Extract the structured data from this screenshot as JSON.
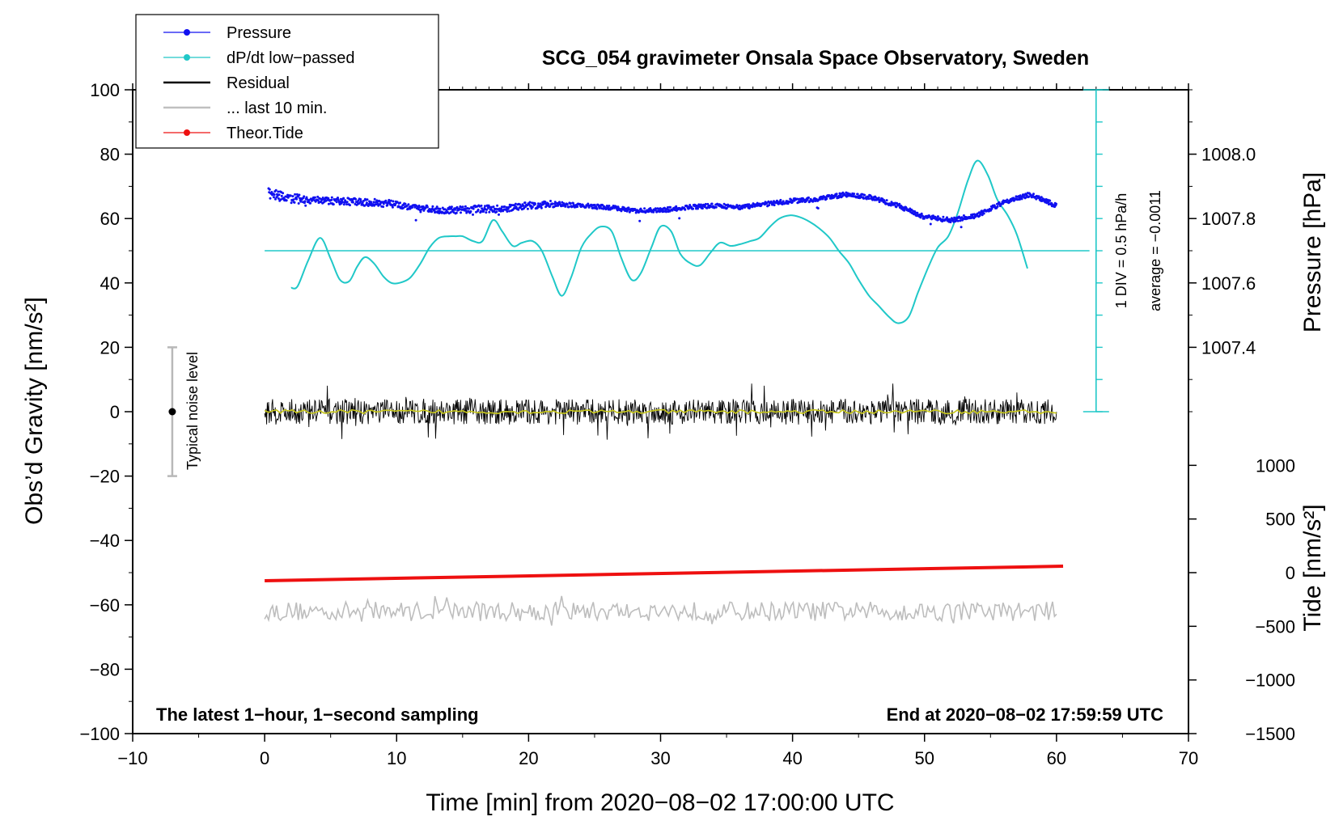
{
  "chart_data": {
    "type": "line",
    "title": "SCG_054 gravimeter Onsala Space Observatory, Sweden",
    "xlabel": "Time [min] from 2020−08−02 17:00:00 UTC",
    "ylabel_left": "Obs’d Gravity [nm/s²]",
    "ylabel_pressure": "Pressure [hPa]",
    "ylabel_tide": "Tide [nm/s²]",
    "xlim": [
      -10,
      70
    ],
    "ylim": [
      -100,
      100
    ],
    "x_ticks": [
      "−10",
      "0",
      "10",
      "20",
      "30",
      "40",
      "50",
      "60",
      "70"
    ],
    "y_ticks": [
      "−100",
      "−80",
      "−60",
      "−40",
      "−20",
      "0",
      "20",
      "40",
      "60",
      "80",
      "100"
    ],
    "pressure_ticks": [
      "1007.4",
      "1007.6",
      "1007.8",
      "1008.0"
    ],
    "tide_ticks": [
      "−1500",
      "−1000",
      "−500",
      "0",
      "500",
      "1000"
    ],
    "legend": [
      {
        "label": "Pressure",
        "color": "#1010f0",
        "style": "line-dot"
      },
      {
        "label": "dP/dt low−passed",
        "color": "#20c8c8",
        "style": "line-dot"
      },
      {
        "label": "Residual",
        "color": "#000000",
        "style": "line"
      },
      {
        "label": "... last 10 min.",
        "color": "#c0c0c0",
        "style": "line"
      },
      {
        "label": "Theor.Tide",
        "color": "#ee1010",
        "style": "line-dot"
      }
    ],
    "annotations": {
      "left_note": "The latest 1−hour, 1−second sampling",
      "right_note": "End at 2020−08−02 17:59:59 UTC",
      "noise_label": "Typical noise level",
      "div_label": "1 DIV = 0.5 hPa/h",
      "avg_label": "average = −0.0011"
    },
    "noise_bar": {
      "x": -7,
      "center": 0,
      "half_range": 20
    },
    "dpdt_zero_line": 50,
    "tide_line": {
      "x": [
        0,
        60.5
      ],
      "y": [
        -52.5,
        -48
      ]
    },
    "residual_band": {
      "x": [
        0,
        60
      ],
      "amplitude": 4
    },
    "last10_band": {
      "x": [
        0,
        60
      ],
      "center": -62,
      "amplitude": 3
    },
    "pressure_series": {
      "x": [
        0.3,
        2,
        5,
        8,
        10,
        12,
        14,
        16,
        18,
        20,
        22,
        24,
        26,
        28,
        30,
        32,
        34,
        36,
        38,
        40,
        42,
        44,
        46,
        48,
        50,
        52,
        54,
        56,
        58,
        60
      ],
      "y": [
        68,
        66,
        65.5,
        65,
        64.5,
        63,
        62.5,
        63,
        63,
        64,
        64.5,
        64,
        63.5,
        62.5,
        62.5,
        63.5,
        64,
        63.5,
        64.5,
        65.5,
        66,
        67.5,
        66.5,
        64,
        60.5,
        59.5,
        61,
        65,
        67.5,
        64
      ]
    },
    "dpdt_series": {
      "x": [
        2,
        2.5,
        3.3,
        4.2,
        5,
        5.7,
        6.4,
        7,
        7.6,
        8.3,
        9,
        9.6,
        10.2,
        11,
        11.8,
        12.5,
        13.2,
        14,
        14.5,
        15,
        15.8,
        16.5,
        17.3,
        18,
        18.8,
        19.5,
        20.3,
        21,
        21.8,
        22.5,
        23.2,
        24,
        24.8,
        25.5,
        26.3,
        27,
        27.8,
        28.5,
        29.3,
        30,
        30.8,
        31.5,
        32.3,
        33,
        33.8,
        34.5,
        35.3,
        36,
        36.8,
        37.5,
        38.3,
        39,
        39.8,
        40.5,
        41.3,
        42,
        42.8,
        43.5,
        44.3,
        45,
        45.8,
        46.5,
        47.3,
        48,
        48.8,
        49.5,
        50.3,
        51,
        51.8,
        52.5,
        53.3,
        54,
        54.8,
        55.5,
        56.3,
        57,
        57.8
      ],
      "y": [
        38.5,
        39,
        47,
        54,
        47.5,
        41,
        40.5,
        45,
        48,
        46,
        42,
        40,
        40,
        41.5,
        46,
        51,
        54,
        54.5,
        54.5,
        54.5,
        53,
        53,
        59.5,
        56,
        51.5,
        52.5,
        53,
        50,
        42,
        36,
        41.5,
        51,
        55.5,
        57.5,
        56,
        48,
        41,
        43,
        51,
        57.5,
        56,
        49,
        46,
        45.5,
        49.5,
        52.5,
        51.5,
        52,
        53,
        54,
        57.5,
        60,
        61,
        60.5,
        59,
        57,
        54,
        50,
        46,
        41,
        36,
        33,
        29.5,
        27.5,
        29.5,
        37,
        45,
        51,
        54.5,
        61.5,
        72,
        78,
        73.5,
        66,
        61,
        55,
        44.5
      ]
    }
  }
}
